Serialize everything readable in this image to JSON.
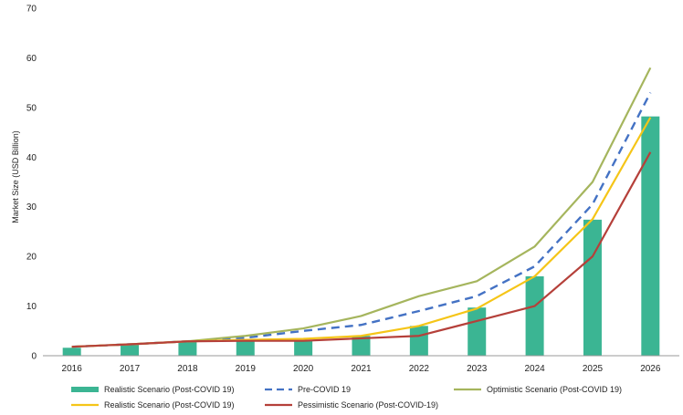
{
  "chart_data": {
    "type": "bar",
    "title": "",
    "xlabel": "",
    "ylabel": "Market Size (USD Billion)",
    "ylim": [
      0,
      70
    ],
    "yticks": [
      0,
      10,
      20,
      30,
      40,
      50,
      60,
      70
    ],
    "grid": false,
    "legend_position": "bottom",
    "categories": [
      "2016",
      "2017",
      "2018",
      "2019",
      "2020",
      "2021",
      "2022",
      "2023",
      "2024",
      "2025",
      "2026"
    ],
    "series": [
      {
        "name": "Realistic Scenario (Post-COVID 19)",
        "kind": "bar",
        "color": "#3bb593",
        "values": [
          1.6,
          2.2,
          2.8,
          3.0,
          3.0,
          4.0,
          6.0,
          9.7,
          16.0,
          27.4,
          48.2
        ]
      },
      {
        "name": "Pre-COVID 19",
        "kind": "line",
        "dash": true,
        "color": "#4472c4",
        "values": [
          1.8,
          2.3,
          2.9,
          3.6,
          5.0,
          6.2,
          9.0,
          12.0,
          18.0,
          30.5,
          53.0
        ]
      },
      {
        "name": "Optimistic Scenario (Post-COVID 19)",
        "kind": "line",
        "color": "#a5b55d",
        "values": [
          1.8,
          2.3,
          2.9,
          4.0,
          5.5,
          8.0,
          12.0,
          15.0,
          22.0,
          35.0,
          58.0
        ]
      },
      {
        "name": "Realistic Scenario (Post-COVID 19)",
        "kind": "line",
        "color": "#f5c518",
        "values": [
          1.8,
          2.3,
          2.9,
          3.2,
          3.4,
          4.0,
          6.0,
          9.5,
          16.0,
          27.5,
          48.0
        ]
      },
      {
        "name": "Pessimistic Scenario (Post-COVID-19)",
        "kind": "line",
        "color": "#b5403a",
        "values": [
          1.8,
          2.3,
          2.9,
          3.0,
          3.0,
          3.5,
          4.0,
          7.0,
          10.0,
          20.0,
          41.0
        ]
      }
    ]
  },
  "legend": {
    "items": [
      {
        "label": "Realistic Scenario (Post-COVID 19)",
        "kind": "bar",
        "color": "#3bb593"
      },
      {
        "label": "Pre-COVID 19",
        "kind": "dash",
        "color": "#4472c4"
      },
      {
        "label": "Optimistic Scenario (Post-COVID 19)",
        "kind": "line",
        "color": "#a5b55d"
      },
      {
        "label": "Realistic Scenario (Post-COVID 19)",
        "kind": "line",
        "color": "#f5c518"
      },
      {
        "label": "Pessimistic Scenario (Post-COVID-19)",
        "kind": "line",
        "color": "#b5403a"
      }
    ]
  }
}
